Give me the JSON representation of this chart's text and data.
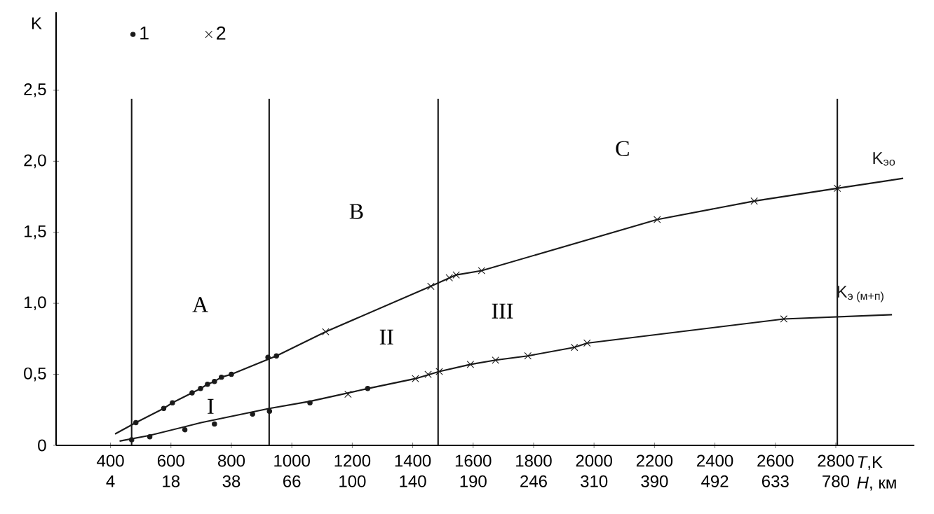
{
  "chart_data": {
    "type": "line",
    "xlabel": "*T*,K",
    "ylabel": "K",
    "xlim": [
      220,
      3060
    ],
    "ylim": [
      0,
      3.05
    ],
    "xticks": [
      400,
      600,
      800,
      1000,
      1200,
      1400,
      1600,
      1800,
      2000,
      2200,
      2400,
      2600,
      2800
    ],
    "yticks": [
      0,
      {
        "value": 0.5,
        "label": "0,5"
      },
      {
        "value": 1.0,
        "label": "1,0"
      },
      {
        "value": 1.5,
        "label": "1,5"
      },
      {
        "value": 2.0,
        "label": "2,0"
      },
      {
        "value": 2.5,
        "label": "2,5"
      }
    ],
    "grid": false,
    "legend": "top left",
    "line_style": "solid",
    "series": [
      {
        "name": "\\mathrm{K}_{\\text{эо}}",
        "marker": "none",
        "color": "#1a1a1a",
        "x": [
          415,
          484,
          576,
          605,
          670,
          698,
          721,
          744,
          767,
          800,
          949,
          1112,
          1460,
          1544,
          1628,
          2209,
          2530,
          2805,
          3023
        ],
        "values": [
          0.08,
          0.16,
          0.26,
          0.3,
          0.37,
          0.4,
          0.43,
          0.45,
          0.48,
          0.5,
          0.63,
          0.8,
          1.12,
          1.2,
          1.23,
          1.59,
          1.72,
          1.81,
          1.88
        ]
      },
      {
        "name": "\\mathrm{K}_{\\text{э (м+п)}}",
        "marker": "none",
        "color": "#1a1a1a",
        "x": [
          430,
          530,
          700,
          926,
          1060,
          1251,
          1409,
          1488,
          1591,
          1674,
          1781,
          1935,
          1977,
          2628,
          2986
        ],
        "values": [
          0.03,
          0.07,
          0.16,
          0.26,
          0.31,
          0.4,
          0.47,
          0.52,
          0.57,
          0.6,
          0.63,
          0.69,
          0.72,
          0.89,
          0.92
        ]
      },
      {
        "name": "1",
        "type": "scatter",
        "marker": "circle",
        "color": "#1a1a1a",
        "x": [
          484,
          470,
          530,
          576,
          605,
          646,
          670,
          698,
          721,
          744,
          744,
          767,
          800,
          870,
          926,
          921,
          949,
          1060,
          1251
        ],
        "values": [
          0.16,
          0.04,
          0.06,
          0.26,
          0.3,
          0.11,
          0.37,
          0.4,
          0.43,
          0.45,
          0.15,
          0.48,
          0.5,
          0.22,
          0.24,
          0.62,
          0.63,
          0.3,
          0.4
        ]
      },
      {
        "name": "2",
        "type": "scatter",
        "marker": "cross",
        "color": "#1a1a1a",
        "x": [
          1112,
          1186,
          1409,
          1451,
          1460,
          1488,
          1521,
          1544,
          1591,
          1628,
          1674,
          1781,
          1935,
          1977,
          2209,
          2530,
          2628,
          2805
        ],
        "values": [
          0.8,
          0.36,
          0.47,
          0.5,
          1.12,
          0.52,
          1.18,
          1.2,
          0.57,
          1.23,
          0.6,
          0.63,
          0.69,
          0.72,
          1.59,
          1.72,
          0.89,
          1.81
        ]
      }
    ],
    "ref_lines": [
      {
        "axis": "x",
        "value": 470,
        "color": "#1a1a1a"
      },
      {
        "axis": "x",
        "value": 925,
        "color": "#1a1a1a"
      },
      {
        "axis": "x",
        "value": 1484,
        "color": "#1a1a1a"
      },
      {
        "axis": "x",
        "value": 2805,
        "color": "#1a1a1a"
      }
    ],
    "annotations": [
      "A",
      "B",
      "C",
      "I",
      "II",
      "III",
      "4",
      "18",
      "38",
      "66",
      "100",
      "140",
      "190",
      "246",
      "310",
      "390",
      "492",
      "633",
      "780",
      "*H*, км"
    ]
  }
}
